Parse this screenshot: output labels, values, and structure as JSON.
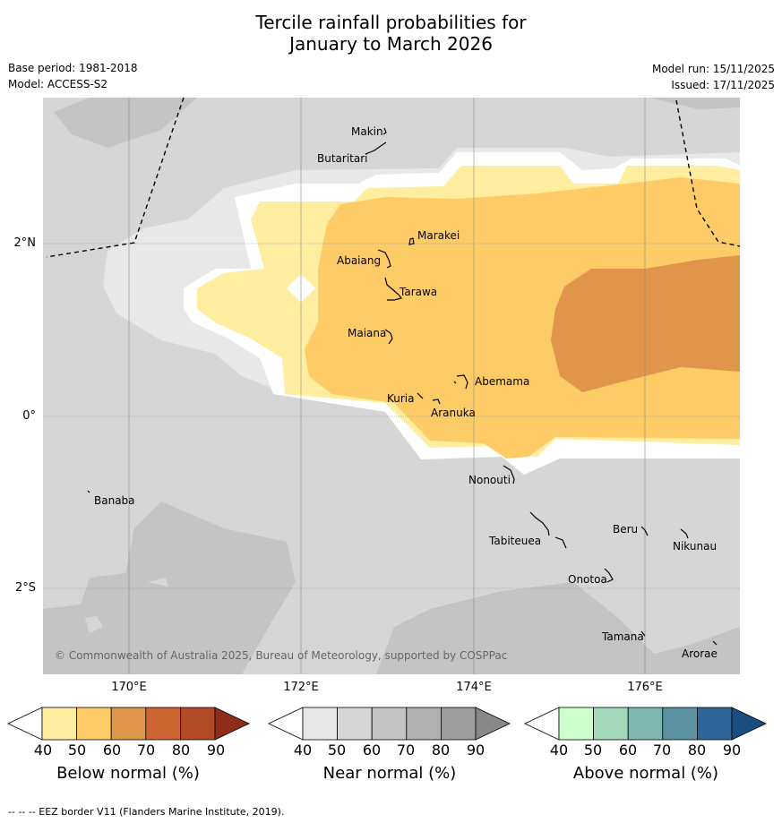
{
  "title": {
    "line1": "Tercile rainfall probabilities for",
    "line2": "January to March 2026"
  },
  "meta": {
    "base_period": "Base period: 1981-2018",
    "model": "Model: ACCESS-S2",
    "model_run": "Model run: 15/11/2025",
    "issued": "Issued: 17/11/2025"
  },
  "map": {
    "copyright": "© Commonwealth of Australia 2025, Bureau of Meteorology, supported by COSPPac",
    "lat_labels": [
      "2°N",
      "0°",
      "2°S"
    ],
    "lon_labels": [
      "170°E",
      "172°E",
      "174°E",
      "176°E"
    ],
    "islands": [
      {
        "id": "makin",
        "name": "Makin"
      },
      {
        "id": "butaritari",
        "name": "Butaritari"
      },
      {
        "id": "marakei",
        "name": "Marakei"
      },
      {
        "id": "abaiang",
        "name": "Abaiang"
      },
      {
        "id": "tarawa",
        "name": "Tarawa"
      },
      {
        "id": "maiana",
        "name": "Maiana"
      },
      {
        "id": "abemama",
        "name": "Abemama"
      },
      {
        "id": "kuria",
        "name": "Kuria"
      },
      {
        "id": "aranuka",
        "name": "Aranuka"
      },
      {
        "id": "nonouti",
        "name": "Nonouti"
      },
      {
        "id": "banaba",
        "name": "Banaba"
      },
      {
        "id": "beru",
        "name": "Beru"
      },
      {
        "id": "tabiteuea",
        "name": "Tabiteuea"
      },
      {
        "id": "nikunau",
        "name": "Nikunau"
      },
      {
        "id": "onotoa",
        "name": "Onotoa"
      },
      {
        "id": "tamana",
        "name": "Tamana"
      },
      {
        "id": "arorae",
        "name": "Arorae"
      }
    ]
  },
  "colorbars": [
    {
      "id": "below",
      "label": "Below normal (%)",
      "ticks": [
        "40",
        "50",
        "60",
        "70",
        "80",
        "90"
      ],
      "colors": [
        "#ffeda0",
        "#fecc66",
        "#e0964a",
        "#cd6633",
        "#b04a27",
        "#8f2d1a"
      ]
    },
    {
      "id": "near",
      "label": "Near normal (%)",
      "ticks": [
        "40",
        "50",
        "60",
        "70",
        "80",
        "90"
      ],
      "colors": [
        "#e8e8e8",
        "#d6d6d6",
        "#c4c4c4",
        "#b0b0b0",
        "#9e9e9e",
        "#888888"
      ]
    },
    {
      "id": "above",
      "label": "Above normal (%)",
      "ticks": [
        "40",
        "50",
        "60",
        "70",
        "80",
        "90"
      ],
      "colors": [
        "#ccffcc",
        "#a3d8bc",
        "#7fb6b0",
        "#5b91a0",
        "#2f6699",
        "#1a4d80"
      ]
    }
  ],
  "footer": "--  --  -- EEZ border V11 (Flanders Marine Institute, 2019)."
}
